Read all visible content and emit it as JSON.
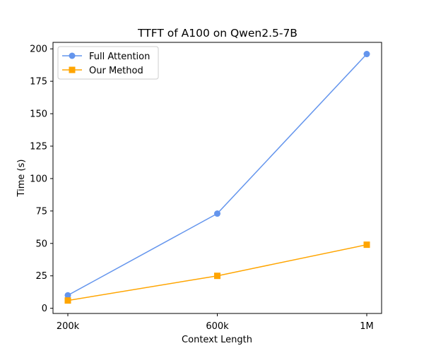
{
  "chart_data": {
    "type": "line",
    "title": "TTFT of A100 on Qwen2.5-7B",
    "xlabel": "Context Length",
    "ylabel": "Time (s)",
    "categories": [
      "200k",
      "600k",
      "1M"
    ],
    "ylim": [
      -4,
      205
    ],
    "yticks": [
      0,
      25,
      50,
      75,
      100,
      125,
      150,
      175,
      200
    ],
    "ytick_labels": [
      "0",
      "25",
      "50",
      "75",
      "100",
      "125",
      "150",
      "175",
      "200"
    ],
    "grid": false,
    "legend_position": "upper-left",
    "series": [
      {
        "name": "Full Attention",
        "values": [
          10,
          73,
          196
        ],
        "color": "#6495ED",
        "marker": "circle"
      },
      {
        "name": "Our Method",
        "values": [
          6,
          25,
          49
        ],
        "color": "#FFA500",
        "marker": "square"
      }
    ]
  }
}
